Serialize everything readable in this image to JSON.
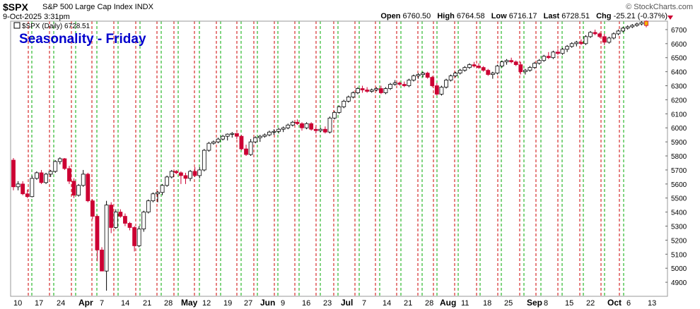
{
  "header": {
    "symbol": "$SPX",
    "description": "S&P 500 Large Cap Index INDX",
    "date": "9-Oct-2025 3:31pm",
    "credit": "© StockCharts.com",
    "open_label": "Open",
    "open": "6760.50",
    "high_label": "High",
    "high": "6764.58",
    "low_label": "Low",
    "low": "6716.17",
    "last_label": "Last",
    "last": "6728.51",
    "chg_label": "Chg",
    "chg": "-25.21 (-0.37%)"
  },
  "legend": {
    "text": "$SPX (Daily) 6728.51"
  },
  "annotation": {
    "text": "Seasonality - Friday",
    "color": "#0000cc"
  },
  "colors": {
    "up": "#000000",
    "down": "#cc0033",
    "friday_line": "#cc0000",
    "monday_line": "#00aa00",
    "last_bar_fill": "#f5b400"
  },
  "chart_data": {
    "type": "candlestick",
    "title": "Seasonality - Friday",
    "legend": "$SPX (Daily) 6728.51",
    "y_range": [
      4800,
      6760
    ],
    "y_ticks": [
      4900,
      5000,
      5100,
      5200,
      5300,
      5400,
      5500,
      5600,
      5700,
      5800,
      5900,
      6000,
      6100,
      6200,
      6300,
      6400,
      6500,
      6600,
      6700
    ],
    "x_labels": [
      "10",
      "17",
      "24",
      "Apr",
      "7",
      "14",
      "21",
      "28",
      "May",
      "12",
      "19",
      "27",
      "Jun",
      "9",
      "16",
      "23",
      "Jul",
      "7",
      "14",
      "21",
      "28",
      "Aug",
      "11",
      "18",
      "25",
      "Sep",
      "8",
      "15",
      "22",
      "Oct",
      "6",
      "13"
    ],
    "monday_lines": [
      "Mar 10",
      "Mar 17",
      "Mar 24",
      "Mar 31",
      "Apr 7",
      "Apr 14",
      "Apr 21",
      "Apr 28",
      "May 5",
      "May 12",
      "May 19",
      "May 27",
      "Jun 2",
      "Jun 9",
      "Jun 16",
      "Jun 23",
      "Jun 30",
      "Jul 7",
      "Jul 14",
      "Jul 21",
      "Jul 28",
      "Aug 4",
      "Aug 11",
      "Aug 18",
      "Aug 25",
      "Sep 2",
      "Sep 8",
      "Sep 15",
      "Sep 22",
      "Sep 29",
      "Oct 6"
    ],
    "friday_lines": [
      "Mar 14",
      "Mar 21",
      "Mar 28",
      "Apr 4",
      "Apr 11",
      "Apr 17",
      "Apr 25",
      "May 2",
      "May 9",
      "May 16",
      "May 23",
      "May 30",
      "Jun 6",
      "Jun 13",
      "Jun 20",
      "Jun 27",
      "Jul 3",
      "Jul 11",
      "Jul 18",
      "Jul 25",
      "Aug 1",
      "Aug 8",
      "Aug 15",
      "Aug 22",
      "Aug 29",
      "Sep 5",
      "Sep 12",
      "Sep 19",
      "Sep 26",
      "Oct 3"
    ],
    "bars": [
      [
        5770,
        5785,
        5555,
        5580
      ],
      [
        5580,
        5620,
        5555,
        5600
      ],
      [
        5600,
        5620,
        5520,
        5530
      ],
      [
        5530,
        5560,
        5500,
        5510
      ],
      [
        5510,
        5660,
        5505,
        5640
      ],
      [
        5640,
        5690,
        5630,
        5680
      ],
      [
        5680,
        5700,
        5600,
        5610
      ],
      [
        5610,
        5680,
        5600,
        5670
      ],
      [
        5670,
        5700,
        5650,
        5690
      ],
      [
        5690,
        5770,
        5680,
        5760
      ],
      [
        5760,
        5790,
        5740,
        5780
      ],
      [
        5780,
        5785,
        5700,
        5710
      ],
      [
        5710,
        5730,
        5600,
        5620
      ],
      [
        5620,
        5640,
        5500,
        5520
      ],
      [
        5520,
        5600,
        5510,
        5590
      ],
      [
        5590,
        5700,
        5580,
        5670
      ],
      [
        5670,
        5680,
        5470,
        5480
      ],
      [
        5480,
        5490,
        5350,
        5370
      ],
      [
        5370,
        5380,
        5050,
        5130
      ],
      [
        5130,
        5150,
        4980,
        4980
      ],
      [
        4980,
        5480,
        4840,
        5450
      ],
      [
        5450,
        5470,
        5250,
        5290
      ],
      [
        5290,
        5420,
        5280,
        5400
      ],
      [
        5400,
        5420,
        5360,
        5370
      ],
      [
        5370,
        5390,
        5300,
        5320
      ],
      [
        5320,
        5330,
        5270,
        5290
      ],
      [
        5290,
        5300,
        5120,
        5160
      ],
      [
        5160,
        5300,
        5150,
        5280
      ],
      [
        5280,
        5410,
        5260,
        5400
      ],
      [
        5400,
        5490,
        5390,
        5480
      ],
      [
        5480,
        5540,
        5470,
        5530
      ],
      [
        5530,
        5550,
        5470,
        5540
      ],
      [
        5540,
        5600,
        5520,
        5590
      ],
      [
        5590,
        5660,
        5580,
        5650
      ],
      [
        5650,
        5700,
        5640,
        5690
      ],
      [
        5690,
        5700,
        5670,
        5680
      ],
      [
        5680,
        5690,
        5600,
        5660
      ],
      [
        5660,
        5680,
        5600,
        5640
      ],
      [
        5640,
        5700,
        5620,
        5690
      ],
      [
        5690,
        5720,
        5650,
        5660
      ],
      [
        5660,
        5720,
        5640,
        5700
      ],
      [
        5700,
        5850,
        5690,
        5840
      ],
      [
        5840,
        5900,
        5830,
        5890
      ],
      [
        5890,
        5910,
        5880,
        5900
      ],
      [
        5900,
        5930,
        5890,
        5920
      ],
      [
        5920,
        5950,
        5910,
        5940
      ],
      [
        5940,
        5960,
        5910,
        5955
      ],
      [
        5955,
        5970,
        5930,
        5960
      ],
      [
        5960,
        5960,
        5920,
        5940
      ],
      [
        5940,
        5950,
        5840,
        5850
      ],
      [
        5850,
        5880,
        5800,
        5810
      ],
      [
        5810,
        5920,
        5800,
        5900
      ],
      [
        5900,
        5940,
        5890,
        5930
      ],
      [
        5930,
        5950,
        5900,
        5940
      ],
      [
        5940,
        5960,
        5930,
        5950
      ],
      [
        5950,
        5980,
        5940,
        5970
      ],
      [
        5970,
        5990,
        5950,
        5975
      ],
      [
        5975,
        6000,
        5960,
        5990
      ],
      [
        5990,
        6010,
        5970,
        6000
      ],
      [
        6000,
        6030,
        5990,
        6020
      ],
      [
        6020,
        6050,
        6010,
        6040
      ],
      [
        6040,
        6060,
        6020,
        6030
      ],
      [
        6030,
        6040,
        5980,
        6000
      ],
      [
        6000,
        6040,
        5990,
        6030
      ],
      [
        6030,
        6040,
        5980,
        5990
      ],
      [
        5990,
        6010,
        5960,
        5980
      ],
      [
        5980,
        6000,
        5970,
        5990
      ],
      [
        5990,
        6010,
        5960,
        5970
      ],
      [
        5970,
        6080,
        5960,
        6070
      ],
      [
        6070,
        6120,
        6060,
        6110
      ],
      [
        6110,
        6160,
        6100,
        6150
      ],
      [
        6150,
        6200,
        6140,
        6190
      ],
      [
        6190,
        6230,
        6180,
        6220
      ],
      [
        6220,
        6260,
        6210,
        6250
      ],
      [
        6250,
        6290,
        6240,
        6280
      ],
      [
        6280,
        6300,
        6250,
        6270
      ],
      [
        6270,
        6290,
        6250,
        6260
      ],
      [
        6260,
        6280,
        6250,
        6270
      ],
      [
        6270,
        6290,
        6260,
        6280
      ],
      [
        6280,
        6300,
        6240,
        6250
      ],
      [
        6250,
        6290,
        6240,
        6280
      ],
      [
        6280,
        6320,
        6270,
        6310
      ],
      [
        6310,
        6340,
        6300,
        6320
      ],
      [
        6320,
        6330,
        6300,
        6310
      ],
      [
        6310,
        6330,
        6290,
        6300
      ],
      [
        6300,
        6350,
        6290,
        6340
      ],
      [
        6340,
        6380,
        6330,
        6370
      ],
      [
        6370,
        6390,
        6350,
        6380
      ],
      [
        6380,
        6400,
        6360,
        6390
      ],
      [
        6390,
        6400,
        6350,
        6360
      ],
      [
        6360,
        6370,
        6290,
        6300
      ],
      [
        6300,
        6320,
        6230,
        6240
      ],
      [
        6240,
        6300,
        6230,
        6290
      ],
      [
        6290,
        6350,
        6280,
        6340
      ],
      [
        6340,
        6380,
        6330,
        6370
      ],
      [
        6370,
        6400,
        6360,
        6390
      ],
      [
        6390,
        6420,
        6380,
        6410
      ],
      [
        6410,
        6440,
        6400,
        6430
      ],
      [
        6430,
        6460,
        6420,
        6450
      ],
      [
        6450,
        6470,
        6430,
        6440
      ],
      [
        6440,
        6460,
        6420,
        6430
      ],
      [
        6430,
        6440,
        6400,
        6410
      ],
      [
        6410,
        6420,
        6370,
        6380
      ],
      [
        6380,
        6400,
        6350,
        6390
      ],
      [
        6390,
        6450,
        6380,
        6440
      ],
      [
        6440,
        6480,
        6430,
        6470
      ],
      [
        6470,
        6490,
        6450,
        6480
      ],
      [
        6480,
        6500,
        6460,
        6470
      ],
      [
        6470,
        6480,
        6440,
        6450
      ],
      [
        6450,
        6470,
        6380,
        6400
      ],
      [
        6400,
        6420,
        6380,
        6410
      ],
      [
        6410,
        6440,
        6400,
        6430
      ],
      [
        6430,
        6470,
        6420,
        6460
      ],
      [
        6460,
        6490,
        6450,
        6480
      ],
      [
        6480,
        6520,
        6470,
        6510
      ],
      [
        6510,
        6540,
        6490,
        6500
      ],
      [
        6500,
        6550,
        6490,
        6540
      ],
      [
        6540,
        6560,
        6520,
        6530
      ],
      [
        6530,
        6570,
        6520,
        6560
      ],
      [
        6560,
        6590,
        6540,
        6580
      ],
      [
        6580,
        6610,
        6570,
        6600
      ],
      [
        6600,
        6620,
        6580,
        6610
      ],
      [
        6610,
        6630,
        6590,
        6600
      ],
      [
        6600,
        6660,
        6590,
        6650
      ],
      [
        6650,
        6690,
        6640,
        6680
      ],
      [
        6680,
        6700,
        6660,
        6670
      ],
      [
        6670,
        6680,
        6640,
        6650
      ],
      [
        6650,
        6670,
        6590,
        6610
      ],
      [
        6610,
        6650,
        6600,
        6640
      ],
      [
        6640,
        6680,
        6630,
        6670
      ],
      [
        6670,
        6700,
        6660,
        6690
      ],
      [
        6690,
        6720,
        6680,
        6710
      ],
      [
        6710,
        6730,
        6700,
        6720
      ],
      [
        6720,
        6740,
        6710,
        6730
      ],
      [
        6730,
        6750,
        6720,
        6740
      ],
      [
        6740,
        6760,
        6730,
        6750
      ],
      [
        6760,
        6765,
        6716,
        6729
      ]
    ]
  }
}
